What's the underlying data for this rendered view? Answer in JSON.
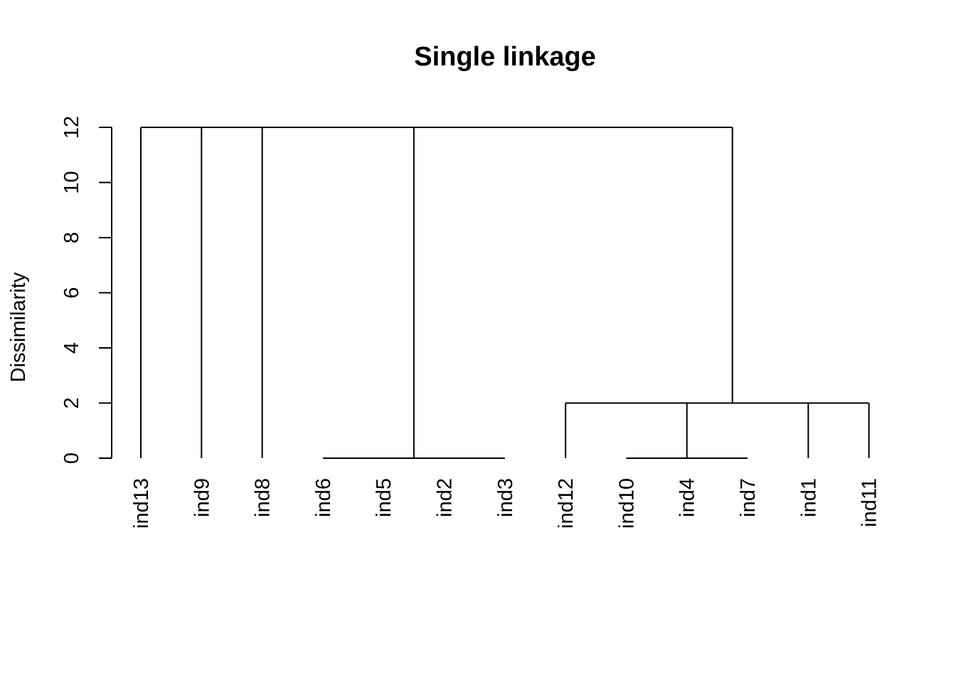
{
  "chart_data": {
    "type": "dendrogram",
    "title": "Single linkage",
    "xlabel": "",
    "ylabel": "Dissimilarity",
    "ylim": [
      0,
      12
    ],
    "yticks": [
      0,
      2,
      4,
      6,
      8,
      10,
      12
    ],
    "leaves": [
      "ind13",
      "ind9",
      "ind8",
      "ind6",
      "ind5",
      "ind2",
      "ind3",
      "ind12",
      "ind10",
      "ind4",
      "ind7",
      "ind1",
      "ind11"
    ],
    "merges": [
      {
        "height": 0,
        "children": [
          "ind6",
          "ind5",
          "ind2",
          "ind3"
        ]
      },
      {
        "height": 0,
        "children": [
          "ind10",
          "ind4",
          "ind7"
        ]
      },
      {
        "height": 2,
        "children": [
          "ind12",
          "ind10+ind4+ind7",
          "ind1",
          "ind11"
        ]
      },
      {
        "height": 12,
        "children": [
          "ind13",
          "ind9",
          "ind8",
          "ind6+ind5+ind2+ind3",
          "ind12+ind10+ind4+ind7+ind1+ind11"
        ]
      }
    ],
    "colors": {
      "line": "#000000",
      "background": "#ffffff"
    }
  }
}
